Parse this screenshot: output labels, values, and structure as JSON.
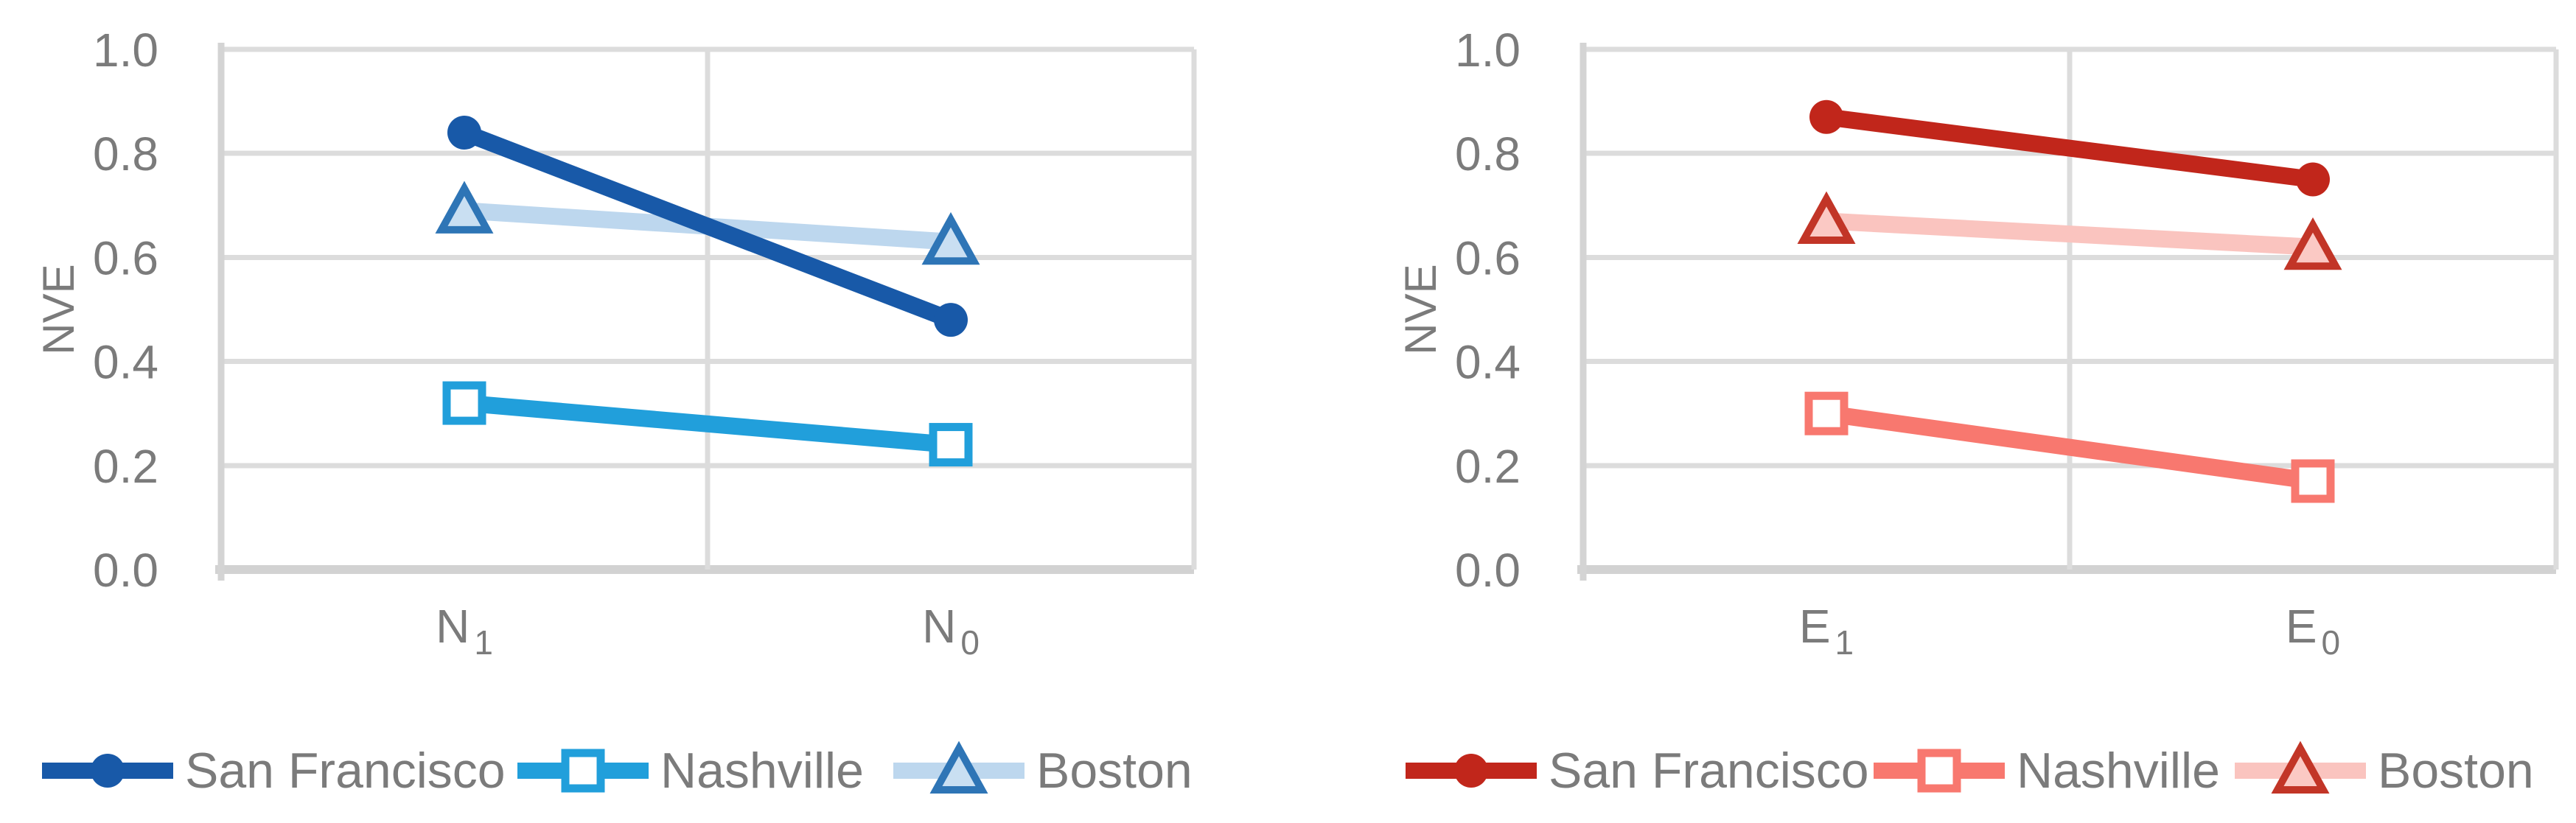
{
  "palette": {
    "grid": "#DCDCDC",
    "axis_line": "#D4D4D4",
    "axis_bottom_line": "#D2D2D2",
    "tick_text": "#7B7B7B",
    "legend_text": "#7B7B7B",
    "background": "#FFFFFF"
  },
  "chart_data": [
    {
      "id": "nve-vs-n",
      "type": "line",
      "title": "",
      "ylabel": "NVE",
      "xlabel": "",
      "ylim": [
        0.0,
        1.0
      ],
      "ytick_labels": [
        "1.0",
        "0.8",
        "0.6",
        "0.4",
        "0.2",
        "0.0"
      ],
      "grid": true,
      "legend_position": "bottom",
      "categories": [
        {
          "base": "N",
          "sub": "1"
        },
        {
          "base": "N",
          "sub": "0"
        }
      ],
      "series": [
        {
          "name": "San Francisco",
          "values": [
            0.84,
            0.48
          ],
          "line_color": "#1859A8",
          "marker": "circle",
          "marker_fill": "#1859A8",
          "marker_stroke": "#1859A8"
        },
        {
          "name": "Nashville",
          "values": [
            0.32,
            0.24
          ],
          "line_color": "#219FDB",
          "marker": "square",
          "marker_fill": "#FFFFFF",
          "marker_stroke": "#219FDB"
        },
        {
          "name": "Boston",
          "values": [
            0.69,
            0.63
          ],
          "line_color": "#BDD7EE",
          "marker": "triangle",
          "marker_fill": "#C9DFF2",
          "marker_stroke": "#2E75B6"
        }
      ]
    },
    {
      "id": "nve-vs-e",
      "type": "line",
      "title": "",
      "ylabel": "NVE",
      "xlabel": "",
      "ylim": [
        0.0,
        1.0
      ],
      "ytick_labels": [
        "1.0",
        "0.8",
        "0.6",
        "0.4",
        "0.2",
        "0.0"
      ],
      "grid": true,
      "legend_position": "bottom",
      "categories": [
        {
          "base": "E",
          "sub": "1"
        },
        {
          "base": "E",
          "sub": "0"
        }
      ],
      "series": [
        {
          "name": "San Francisco",
          "values": [
            0.87,
            0.75
          ],
          "line_color": "#C1261B",
          "marker": "circle",
          "marker_fill": "#C1261B",
          "marker_stroke": "#C1261B"
        },
        {
          "name": "Nashville",
          "values": [
            0.3,
            0.17
          ],
          "line_color": "#F8786F",
          "marker": "square",
          "marker_fill": "#FFFFFF",
          "marker_stroke": "#F8786F"
        },
        {
          "name": "Boston",
          "values": [
            0.67,
            0.62
          ],
          "line_color": "#FAC4BF",
          "marker": "triangle",
          "marker_fill": "#FBC9C4",
          "marker_stroke": "#C23527"
        }
      ]
    }
  ]
}
